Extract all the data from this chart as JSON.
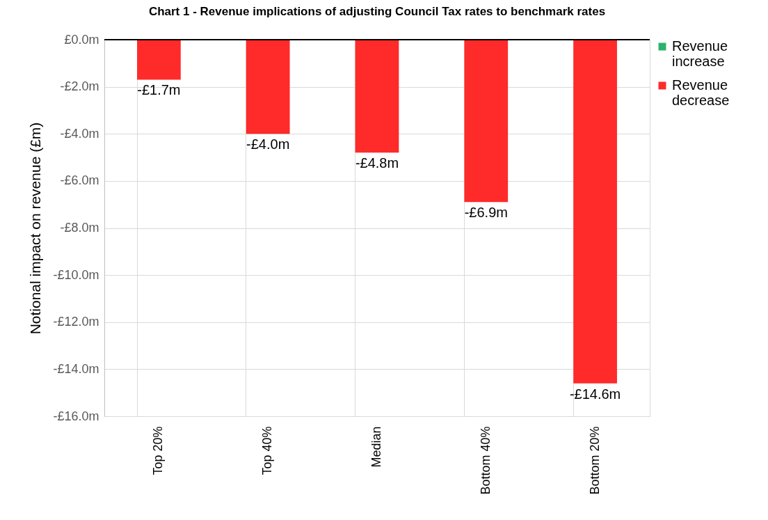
{
  "chart_data": {
    "type": "bar",
    "title": "Chart 1 - Revenue implications of adjusting Council Tax rates to benchmark rates",
    "ylabel": "Notional impact on revenue (£m)",
    "categories": [
      "Top 20%",
      "Top 40%",
      "Median",
      "Bottom 40%",
      "Bottom 20%"
    ],
    "series": [
      {
        "name": "Revenue increase",
        "color": "#2bb36b",
        "values": [
          null,
          null,
          null,
          null,
          null
        ]
      },
      {
        "name": "Revenue decrease",
        "color": "#ff2a2a",
        "values": [
          -1.7,
          -4.0,
          -4.8,
          -6.9,
          -14.6
        ],
        "value_labels": [
          "-£1.7m",
          "-£4.0m",
          "-£4.8m",
          "-£6.9m",
          "-£14.6m"
        ]
      }
    ],
    "ylim": [
      -16,
      0
    ],
    "yticks": [
      {
        "value": 0,
        "label": "£0.0m"
      },
      {
        "value": -2,
        "label": "-£2.0m"
      },
      {
        "value": -4,
        "label": "-£4.0m"
      },
      {
        "value": -6,
        "label": "-£6.0m"
      },
      {
        "value": -8,
        "label": "-£8.0m"
      },
      {
        "value": -10,
        "label": "-£10.0m"
      },
      {
        "value": -12,
        "label": "-£12.0m"
      },
      {
        "value": -14,
        "label": "-£14.0m"
      },
      {
        "value": -16,
        "label": "-£16.0m"
      }
    ],
    "grid": true,
    "legend": "top right"
  }
}
